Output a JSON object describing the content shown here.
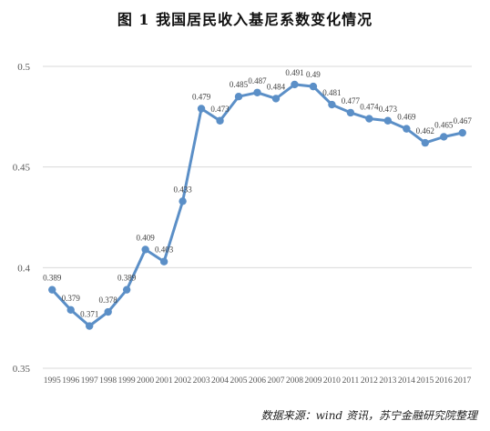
{
  "title": "图 1  我国居民收入基尼系数变化情况",
  "source": "数据来源：wind 资讯，苏宁金融研究院整理",
  "chart_data": {
    "type": "line",
    "title": "图 1  我国居民收入基尼系数变化情况",
    "xlabel": "",
    "ylabel": "",
    "ylim": [
      0.35,
      0.5
    ],
    "y_ticks": [
      0.35,
      0.4,
      0.45,
      0.5
    ],
    "y_tick_labels": [
      "0.35",
      "0.4",
      "0.45",
      "0.5"
    ],
    "grid": "horizontal",
    "line_color": "#5b8fc7",
    "categories": [
      "1995",
      "1996",
      "1997",
      "1998",
      "1999",
      "2000",
      "2001",
      "2002",
      "2003",
      "2004",
      "2005",
      "2006",
      "2007",
      "2008",
      "2009",
      "2010",
      "2011",
      "2012",
      "2013",
      "2014",
      "2015",
      "2016",
      "2017"
    ],
    "values": [
      0.389,
      0.379,
      0.371,
      0.378,
      0.389,
      0.409,
      0.403,
      0.433,
      0.479,
      0.473,
      0.485,
      0.487,
      0.484,
      0.491,
      0.49,
      0.481,
      0.477,
      0.474,
      0.473,
      0.469,
      0.462,
      0.465,
      0.467
    ],
    "data_labels": [
      "0.389",
      "0.379",
      "0.371",
      "0.378",
      "0.389",
      "0.409",
      "0.403",
      "0.433",
      "0.479",
      "0.473",
      "0.485",
      "0.487",
      "0.484",
      "0.491",
      "0.49",
      "0.481",
      "0.477",
      "0.474",
      "0.473",
      "0.469",
      "0.462",
      "0.465",
      "0.467"
    ]
  }
}
